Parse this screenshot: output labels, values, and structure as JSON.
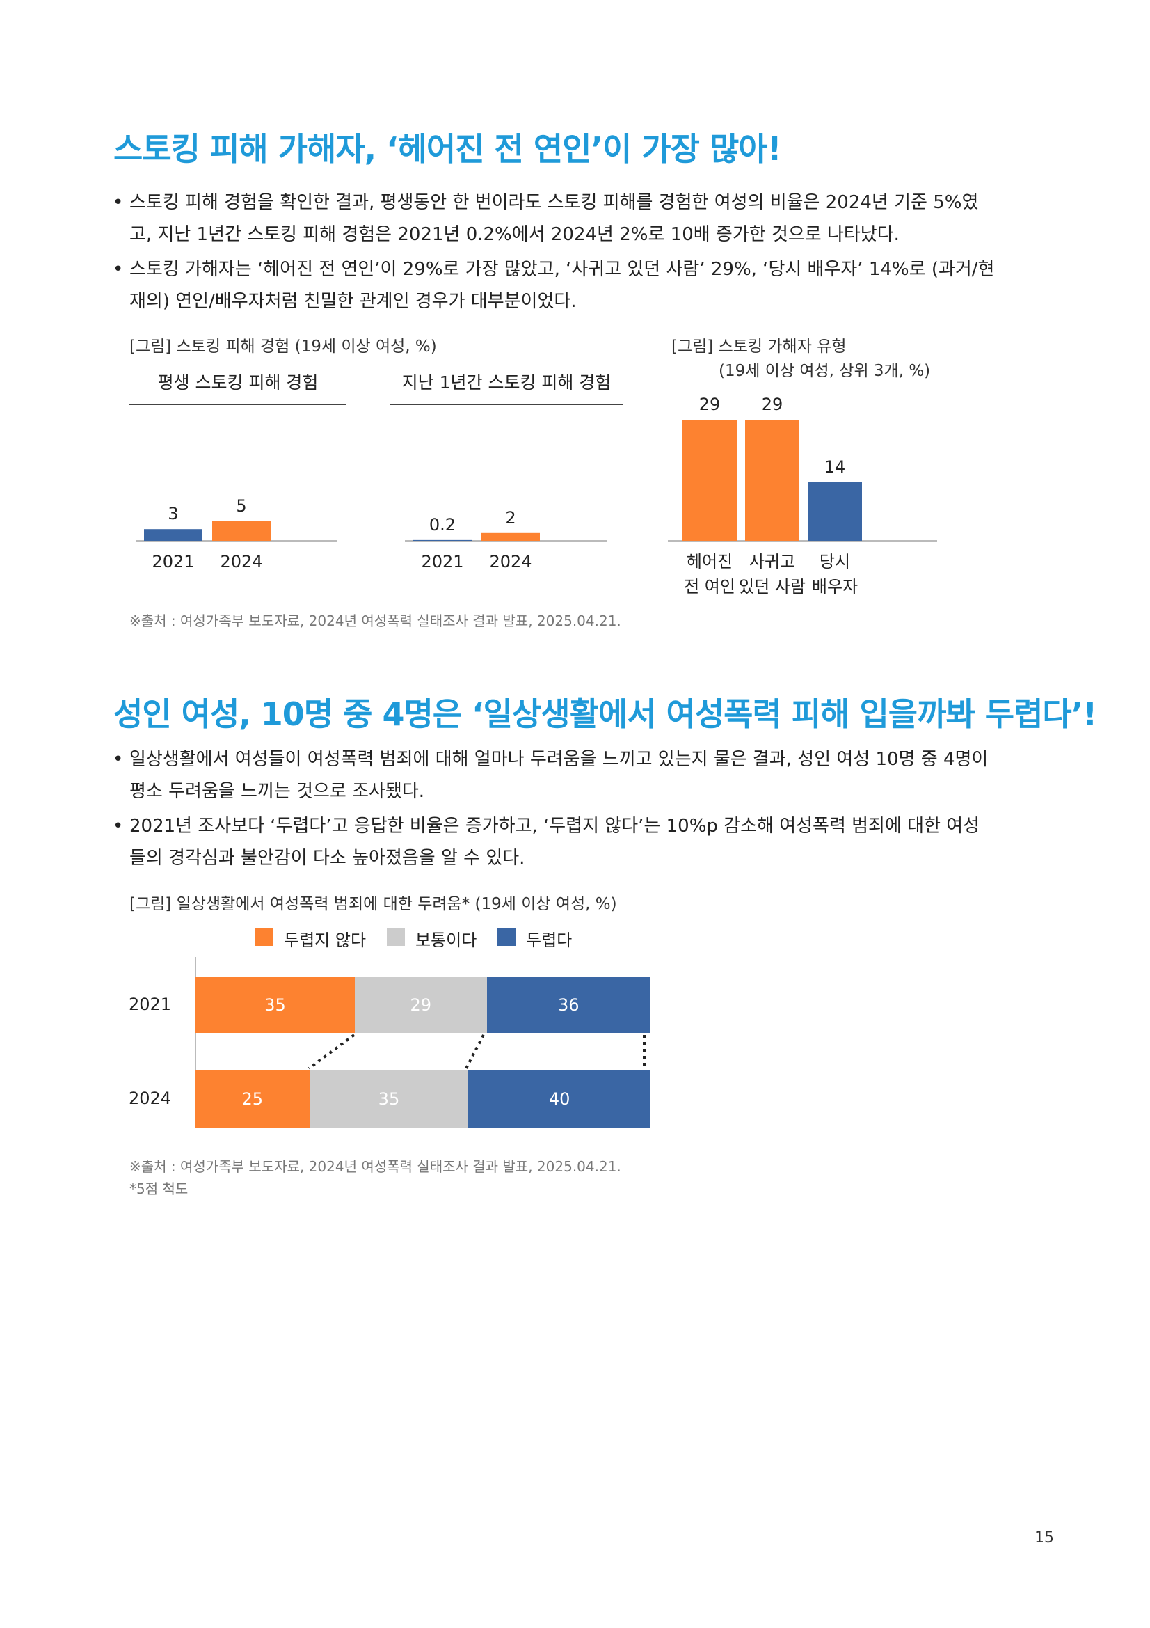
{
  "colors": {
    "orange": "#fd8230",
    "blue": "#3a66a4",
    "gray": "#cccccc",
    "heading": "#1f9ad9"
  },
  "section1": {
    "heading": "스토킹 피해 가해자, ‘헤어진 전 연인’이 가장 많아!",
    "bullets": [
      {
        "lines": [
          "스토킹 피해 경험을 확인한 결과, 평생동안 한 번이라도 스토킹 피해를 경험한 여성의 비율은 2024년 기준 5%였",
          "고, 지난 1년간 스토킹 피해 경험은 2021년 0.2%에서 2024년 2%로 10배 증가한 것으로 나타났다."
        ]
      },
      {
        "lines": [
          "스토킹 가해자는 ‘헤어진 전 연인’이 29%로 가장 많았고, ‘사귀고 있던 사람’ 29%, ‘당시 배우자’ 14%로 (과거/현",
          "재의) 연인/배우자처럼 친밀한 관계인 경우가 대부분이었다."
        ]
      }
    ],
    "bullet_mark": "•",
    "fig1_caption": "[그림] 스토킹 피해 경험 (19세 이상 여성, %)",
    "fig1_sub_lifetime": "평생 스토킹 피해 경험",
    "fig1_sub_year": "지난 1년간 스토킹 피해 경험",
    "fig2_caption_line1": "[그림] 스토킹 가해자 유형",
    "fig2_caption_line2": "(19세 이상 여성, 상위 3개, %)",
    "source": "※출처 : 여성가족부 보도자료, 2024년 여성폭력 실태조사 결과 발표, 2025.04.21."
  },
  "section2": {
    "heading": "성인 여성, 10명 중 4명은 ‘일상생활에서 여성폭력 피해 입을까봐 두렵다’!",
    "bullets": [
      {
        "lines": [
          "일상생활에서 여성들이 여성폭력 범죄에 대해 얼마나 두려움을 느끼고 있는지 물은 결과, 성인 여성 10명 중 4명이",
          "평소 두려움을 느끼는 것으로 조사됐다."
        ]
      },
      {
        "lines": [
          "2021년 조사보다 ‘두렵다’고 응답한 비율은 증가하고, ‘두렵지 않다’는 10%p 감소해 여성폭력 범죄에 대한 여성",
          "들의 경각심과 불안감이 다소 높아졌음을 알 수 있다."
        ]
      }
    ],
    "fig_caption": "[그림] 일상생활에서 여성폭력 범죄에 대한 두려움* (19세 이상 여성, %)",
    "source": "※출처 : 여성가족부 보도자료, 2024년 여성폭력 실태조사 결과 발표, 2025.04.21.",
    "footnote": "*5점 척도"
  },
  "page_number": "15",
  "chart_data": [
    {
      "type": "bar",
      "title": "평생 스토킹 피해 경험",
      "categories": [
        "2021",
        "2024"
      ],
      "series": [
        {
          "values": [
            3,
            5
          ]
        }
      ],
      "data_labels": [
        "3",
        "5"
      ],
      "bar_colors": [
        "#3a66a4",
        "#fd8230"
      ],
      "ylim": [
        0,
        30
      ]
    },
    {
      "type": "bar",
      "title": "지난 1년간 스토킹 피해 경험",
      "categories": [
        "2021",
        "2024"
      ],
      "series": [
        {
          "values": [
            0.2,
            2
          ]
        }
      ],
      "data_labels": [
        "0.2",
        "2"
      ],
      "bar_colors": [
        "#3a66a4",
        "#fd8230"
      ],
      "ylim": [
        0,
        30
      ]
    },
    {
      "type": "bar",
      "title": "[그림] 스토킹 가해자 유형",
      "categories": [
        [
          "헤어진",
          "전 여인"
        ],
        [
          "사귀고",
          "있던 사람"
        ],
        [
          "당시",
          "배우자"
        ]
      ],
      "series": [
        {
          "values": [
            29,
            29,
            14
          ]
        }
      ],
      "data_labels": [
        "29",
        "29",
        "14"
      ],
      "bar_colors": [
        "#fd8230",
        "#fd8230",
        "#3a66a4"
      ],
      "ylim": [
        0,
        29
      ]
    },
    {
      "type": "bar",
      "stacked": true,
      "orientation": "horizontal",
      "title": "[그림] 일상생활에서 여성폭력 범죄에 대한 두려움* (19세 이상 여성, %)",
      "categories": [
        "2021",
        "2024"
      ],
      "series": [
        {
          "name": "두렵지 않다",
          "values": [
            35,
            25
          ],
          "color": "#fd8230"
        },
        {
          "name": "보통이다",
          "values": [
            29,
            35
          ],
          "color": "#cccccc"
        },
        {
          "name": "두렵다",
          "values": [
            36,
            40
          ],
          "color": "#3a66a4"
        }
      ],
      "xlim": [
        0,
        100
      ],
      "legend": "top"
    }
  ]
}
